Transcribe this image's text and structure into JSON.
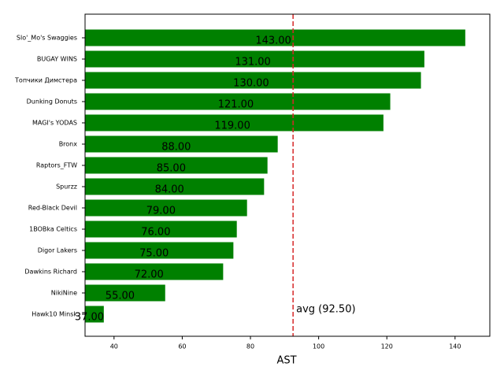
{
  "chart_data": {
    "type": "barh",
    "xlabel": "AST",
    "categories": [
      "Slo'_Mo's Swaggies",
      "BUGAY WINS",
      "Топчики Димстера",
      "Dunking Donuts",
      "MAGI's YODAS",
      "Bronx",
      "Raptors_FTW",
      "Spurzz",
      "Red-Black Devil",
      "1BOBka Celtics",
      "Digor Lakers",
      "Dawkins Richard",
      "NikiNine",
      "Hawk10 Minsk"
    ],
    "values": [
      143,
      131,
      130,
      121,
      119,
      88,
      85,
      84,
      79,
      76,
      75,
      72,
      55,
      37
    ],
    "value_labels": [
      "143.00",
      "131.00",
      "130.00",
      "121.00",
      "119.00",
      "88.00",
      "85.00",
      "84.00",
      "79.00",
      "76.00",
      "75.00",
      "72.00",
      "55.00",
      "37.00"
    ],
    "color": "#008000",
    "xlim": [
      31.5,
      150.2
    ],
    "xticks": [
      40,
      60,
      80,
      100,
      120,
      140
    ],
    "avg_line": {
      "value": 92.5,
      "label": "avg (92.50)",
      "color": "#d62728"
    }
  }
}
